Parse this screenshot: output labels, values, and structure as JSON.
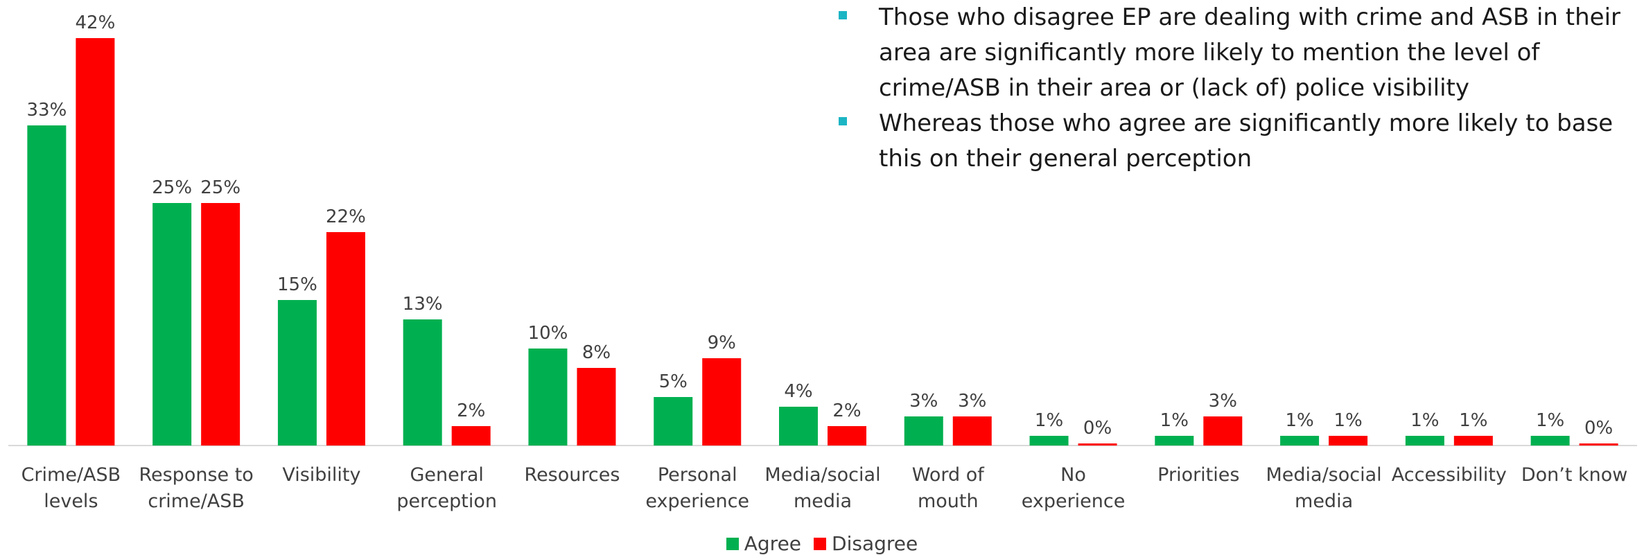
{
  "notes": [
    "Those who disagree EP are dealing with crime and ASB in their area are significantly more likely to mention the level of crime/ASB in their area or (lack of) police visibility",
    "Whereas those who agree are significantly more likely to base this on their general perception"
  ],
  "colors": {
    "agree": "#00b050",
    "disagree": "#ff0000",
    "bullet": "#1cb5c4",
    "axis": "#d9d9d9"
  },
  "chart_data": {
    "type": "bar",
    "categories": [
      [
        "Crime/ASB",
        "levels"
      ],
      [
        "Response to",
        "crime/ASB"
      ],
      [
        "Visibility"
      ],
      [
        "General",
        "perception"
      ],
      [
        "Resources"
      ],
      [
        "Personal",
        "experience"
      ],
      [
        "Media/social",
        "media"
      ],
      [
        "Word of",
        "mouth"
      ],
      [
        "No",
        "experience"
      ],
      [
        "Priorities"
      ],
      [
        "Media/social",
        "media"
      ],
      [
        "Accessibility"
      ],
      [
        "Don’t know"
      ]
    ],
    "series": [
      {
        "name": "Agree",
        "values": [
          33,
          25,
          15,
          13,
          10,
          5,
          4,
          3,
          1,
          1,
          1,
          1,
          1
        ],
        "labels": [
          "33%",
          "25%",
          "15%",
          "13%",
          "10%",
          "5%",
          "4%",
          "3%",
          "1%",
          "1%",
          "1%",
          "1%",
          "1%"
        ]
      },
      {
        "name": "Disagree",
        "values": [
          42,
          25,
          22,
          2,
          8,
          9,
          2,
          3,
          0,
          3,
          1,
          1,
          0
        ],
        "labels": [
          "42%",
          "25%",
          "22%",
          "2%",
          "8%",
          "9%",
          "2%",
          "3%",
          "0%",
          "3%",
          "1%",
          "1%",
          "0%"
        ]
      }
    ],
    "ylim": [
      0,
      42
    ],
    "legend": "bottom-center"
  },
  "legend": {
    "agree_label": "Agree",
    "disagree_label": "Disagree"
  }
}
